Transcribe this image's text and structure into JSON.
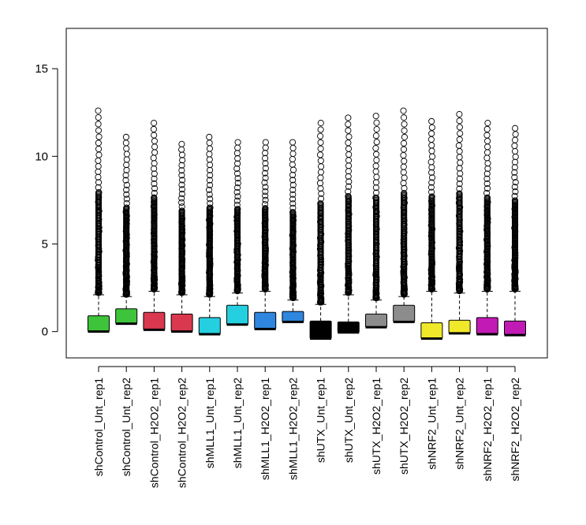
{
  "chart_data": {
    "type": "boxplot",
    "title": "",
    "xlabel": "",
    "ylabel": "",
    "ylim": [
      -1.5,
      17.3
    ],
    "yticks": [
      0,
      5,
      10,
      15
    ],
    "ytick_labels": [
      "0",
      "5",
      "10",
      "15"
    ],
    "grid": false,
    "outlier_marker": "open circle",
    "categories": [
      "shControl_Unt_rep1",
      "shControl_Unt_rep2",
      "shControl_H2O2_rep1",
      "shControl_H2O2_rep2",
      "shMLL1_Unt_rep1",
      "shMLL1_Unt_rep2",
      "shMLL1_H2O2_rep1",
      "shMLL1_H2O2_rep2",
      "shUTX_Unt_rep1",
      "shUTX_Unt_rep2",
      "shUTX_H2O2_rep1",
      "shUTX_H2O2_rep2",
      "shNRF2_Unt_rep1",
      "shNRF2_Unt_rep2",
      "shNRF2_H2O2_rep1",
      "shNRF2_H2O2_rep2"
    ],
    "colors": [
      "#3ec43a",
      "#3ec43a",
      "#d9384f",
      "#d9384f",
      "#24cfe0",
      "#24cfe0",
      "#2e86de",
      "#2e86de",
      "#000000",
      "#000000",
      "#8c8c8c",
      "#8c8c8c",
      "#f0e92a",
      "#f0e92a",
      "#c21ab4",
      "#c21ab4"
    ],
    "boxes": [
      {
        "min": 0.0,
        "q1": 0.0,
        "median": 0.0,
        "q3": 0.9,
        "whisker_high": 2.1,
        "outlier_max": 12.6
      },
      {
        "min": 0.45,
        "q1": 0.45,
        "median": 0.45,
        "q3": 1.3,
        "whisker_high": 2.0,
        "outlier_max": 11.1
      },
      {
        "min": 0.1,
        "q1": 0.1,
        "median": 0.1,
        "q3": 1.1,
        "whisker_high": 2.3,
        "outlier_max": 11.9
      },
      {
        "min": 0.0,
        "q1": 0.0,
        "median": 0.0,
        "q3": 1.0,
        "whisker_high": 2.1,
        "outlier_max": 10.7
      },
      {
        "min": -0.15,
        "q1": -0.15,
        "median": -0.15,
        "q3": 0.8,
        "whisker_high": 2.0,
        "outlier_max": 11.1
      },
      {
        "min": 0.4,
        "q1": 0.4,
        "median": 0.4,
        "q3": 1.5,
        "whisker_high": 2.2,
        "outlier_max": 10.8
      },
      {
        "min": 0.15,
        "q1": 0.15,
        "median": 0.15,
        "q3": 1.1,
        "whisker_high": 2.3,
        "outlier_max": 10.8
      },
      {
        "min": 0.55,
        "q1": 0.55,
        "median": 0.55,
        "q3": 1.15,
        "whisker_high": 1.8,
        "outlier_max": 10.8
      },
      {
        "min": -0.4,
        "q1": -0.4,
        "median": -0.4,
        "q3": 0.6,
        "whisker_high": 1.55,
        "outlier_max": 11.9
      },
      {
        "min": -0.05,
        "q1": -0.05,
        "median": -0.05,
        "q3": 0.55,
        "whisker_high": 2.1,
        "outlier_max": 12.2
      },
      {
        "min": 0.25,
        "q1": 0.25,
        "median": 0.25,
        "q3": 1.0,
        "whisker_high": 1.8,
        "outlier_max": 12.3
      },
      {
        "min": 0.55,
        "q1": 0.55,
        "median": 0.55,
        "q3": 1.5,
        "whisker_high": 2.0,
        "outlier_max": 12.6
      },
      {
        "min": -0.4,
        "q1": -0.4,
        "median": -0.4,
        "q3": 0.5,
        "whisker_high": 2.3,
        "outlier_max": 12.0
      },
      {
        "min": -0.1,
        "q1": -0.1,
        "median": -0.1,
        "q3": 0.65,
        "whisker_high": 2.2,
        "outlier_max": 12.4
      },
      {
        "min": -0.15,
        "q1": -0.15,
        "median": -0.15,
        "q3": 0.8,
        "whisker_high": 2.3,
        "outlier_max": 11.9
      },
      {
        "min": -0.2,
        "q1": -0.2,
        "median": -0.2,
        "q3": 0.6,
        "whisker_high": 2.3,
        "outlier_max": 11.6
      }
    ]
  }
}
